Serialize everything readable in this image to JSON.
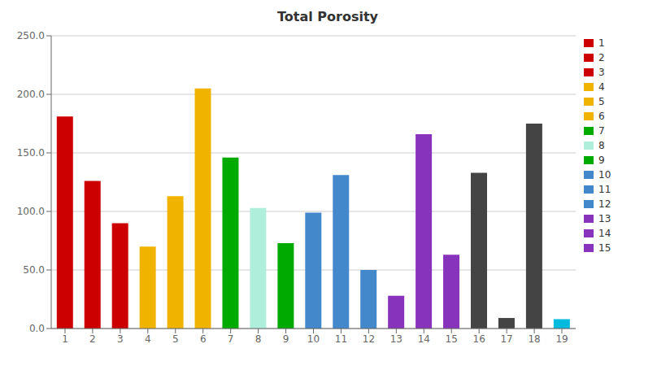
{
  "chart_data": {
    "type": "bar",
    "title": "Total Porosity",
    "categories": [
      "1",
      "2",
      "3",
      "4",
      "5",
      "6",
      "7",
      "8",
      "9",
      "10",
      "11",
      "12",
      "13",
      "14",
      "15",
      "16",
      "17",
      "18",
      "19"
    ],
    "values": [
      181,
      126,
      90,
      70,
      113,
      205,
      146,
      103,
      73,
      99,
      131,
      50,
      28,
      166,
      63,
      133,
      9,
      175,
      8
    ],
    "colors": [
      "#cc0000",
      "#cc0000",
      "#cc0000",
      "#f0b400",
      "#f0b400",
      "#f0b400",
      "#00aa00",
      "#b0eedc",
      "#00aa00",
      "#4488cc",
      "#4488cc",
      "#4488cc",
      "#8833bb",
      "#8833bb",
      "#8833bb",
      "#444444",
      "#444444",
      "#444444",
      "#00bbdd"
    ],
    "ylim": [
      0,
      250
    ],
    "yticks": [
      {
        "value": 0,
        "label": "0.0"
      },
      {
        "value": 50,
        "label": "50.0"
      },
      {
        "value": 100,
        "label": "100.0"
      },
      {
        "value": 150,
        "label": "150.0"
      },
      {
        "value": 200,
        "label": "200.0"
      },
      {
        "value": 250,
        "label": "250.0"
      }
    ],
    "grid": true,
    "legend": "upper right",
    "legend_entries": [
      {
        "name": "1",
        "color": "#cc0000"
      },
      {
        "name": "2",
        "color": "#cc0000"
      },
      {
        "name": "3",
        "color": "#cc0000"
      },
      {
        "name": "4",
        "color": "#f0b400"
      },
      {
        "name": "5",
        "color": "#f0b400"
      },
      {
        "name": "6",
        "color": "#f0b400"
      },
      {
        "name": "7",
        "color": "#00aa00"
      },
      {
        "name": "8",
        "color": "#b0eedc"
      },
      {
        "name": "9",
        "color": "#00aa00"
      },
      {
        "name": "10",
        "color": "#4488cc"
      },
      {
        "name": "11",
        "color": "#4488cc"
      },
      {
        "name": "12",
        "color": "#4488cc"
      },
      {
        "name": "13",
        "color": "#8833bb"
      },
      {
        "name": "14",
        "color": "#8833bb"
      },
      {
        "name": "15",
        "color": "#8833bb"
      }
    ]
  }
}
